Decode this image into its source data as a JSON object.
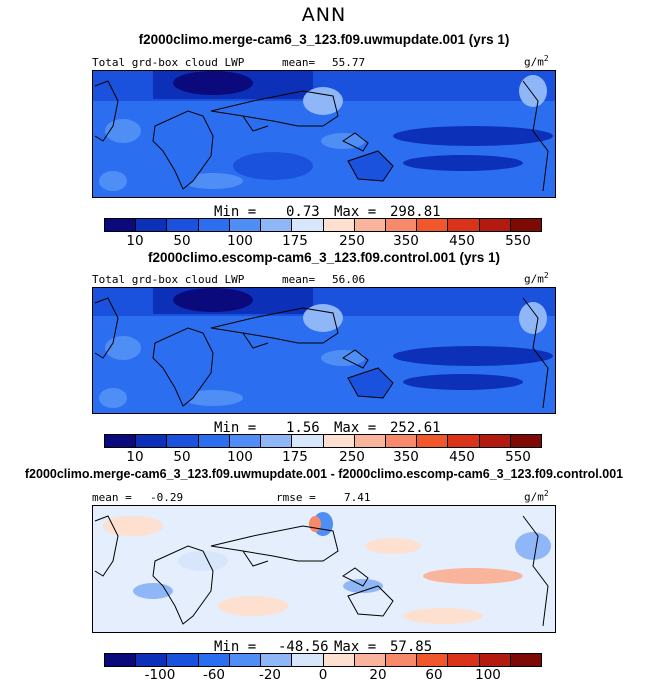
{
  "title": "ANN",
  "units": "g/m",
  "units_sup": "2",
  "colors": [
    "#0a0a7c",
    "#0c30b8",
    "#1b52dd",
    "#2b6ff0",
    "#4f8ef5",
    "#8fb6f7",
    "#d7e6fb",
    "#fde0d0",
    "#f8b59c",
    "#f68a6b",
    "#f0582b",
    "#d9331a",
    "#b31b10",
    "#7e0a05"
  ],
  "panels": [
    {
      "case": "f2000climo.merge-cam6_3_123.f09.uwmupdate.001 (yrs 1)",
      "label": "Total grd-box cloud LWP",
      "mean_label": "mean=",
      "mean": "55.77",
      "min_label": "Min =",
      "min": "0.73",
      "max_label": "Max =",
      "max": "298.81",
      "ticks": [
        "10",
        "50",
        "100",
        "175",
        "250",
        "350",
        "450",
        "550"
      ]
    },
    {
      "case": "f2000climo.escomp-cam6_3_123.f09.control.001 (yrs 1)",
      "label": "Total grd-box cloud LWP",
      "mean_label": "mean=",
      "mean": "56.06",
      "min_label": "Min =",
      "min": "1.56",
      "max_label": "Max =",
      "max": "252.61",
      "ticks": [
        "10",
        "50",
        "100",
        "175",
        "250",
        "350",
        "450",
        "550"
      ]
    },
    {
      "case": "f2000climo.merge-cam6_3_123.f09.uwmupdate.001 - f2000climo.escomp-cam6_3_123.f09.control.001",
      "mean_label": "mean =",
      "mean": "-0.29",
      "rmse_label": "rmse =",
      "rmse": "7.41",
      "min_label": "Min =",
      "min": "-48.56",
      "max_label": "Max =",
      "max": "57.85",
      "ticks": [
        "-100",
        "-60",
        "-20",
        "0",
        "20",
        "60",
        "100"
      ]
    }
  ]
}
